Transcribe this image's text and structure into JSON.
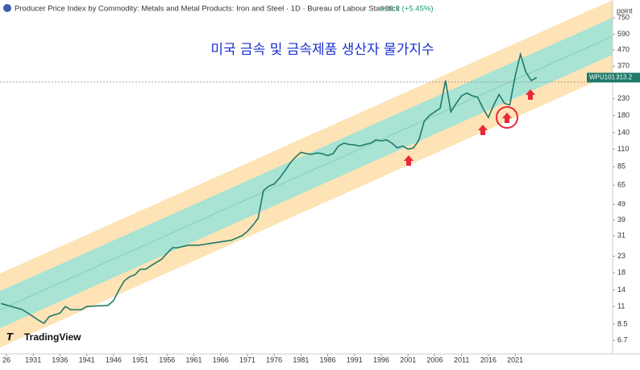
{
  "chart_data": {
    "type": "line",
    "title": "Producer Price Index by Commodity: Metals and Metal Products: Iron and Steel · 1D · Bureau of Labour Statistics",
    "change": "+16.2 (+5.45%)",
    "annotation": "미국 금속 및 금속제품 생산자 물가지수",
    "logo": "TradingView",
    "y_label": "point",
    "log_y": true,
    "x": [
      1925,
      1927,
      1929,
      1931,
      1932,
      1933,
      1934,
      1936,
      1937,
      1938,
      1940,
      1941,
      1945,
      1946,
      1947,
      1948,
      1949,
      1950,
      1951,
      1952,
      1953,
      1955,
      1956,
      1957,
      1958,
      1960,
      1962,
      1965,
      1968,
      1970,
      1971,
      1972,
      1973,
      1974,
      1975,
      1976,
      1977,
      1978,
      1979,
      1980,
      1981,
      1982,
      1983,
      1984,
      1985,
      1986,
      1987,
      1988,
      1989,
      1990,
      1991,
      1992,
      1993,
      1994,
      1995,
      1996,
      1997,
      1998,
      1999,
      2000,
      2001,
      2002,
      2003,
      2004,
      2005,
      2006,
      2007,
      2008,
      2009,
      2010,
      2011,
      2012,
      2013,
      2014,
      2015,
      2016,
      2017,
      2018,
      2019,
      2020,
      2021,
      2022,
      2023,
      2024,
      2025
    ],
    "series": [
      {
        "name": "WPU101",
        "color": "#1f7a6a",
        "values": [
          11.5,
          11,
          10.5,
          9.5,
          9,
          8.6,
          9.5,
          10,
          11,
          10.5,
          10.5,
          11,
          11.2,
          12,
          14,
          16,
          17,
          17.5,
          19,
          19,
          20,
          22,
          24,
          26,
          26,
          27,
          27,
          28,
          29,
          31,
          33,
          36,
          40,
          60,
          64,
          66,
          72,
          80,
          90,
          98,
          105,
          103,
          102,
          104,
          103,
          100,
          103,
          115,
          120,
          118,
          117,
          115,
          118,
          120,
          126,
          124,
          126,
          120,
          112,
          115,
          110,
          112,
          125,
          165,
          180,
          190,
          200,
          300,
          190,
          215,
          240,
          250,
          240,
          235,
          200,
          175,
          210,
          245,
          215,
          210,
          320,
          440,
          340,
          300,
          313.2
        ]
      }
    ],
    "xlim": [
      1924.8,
      2039.2
    ],
    "xticks": [
      {
        "value": 1926,
        "label": "26"
      },
      1931,
      1936,
      1941,
      1946,
      1951,
      1956,
      1961,
      1966,
      1971,
      1976,
      1981,
      1986,
      1991,
      1996,
      2001,
      2006,
      2011,
      2016,
      2021
    ],
    "ylim": [
      5.5,
      975
    ],
    "yticks": [
      6.7,
      8.5,
      11,
      14,
      18,
      23,
      31,
      39,
      49,
      65,
      85,
      110,
      140,
      180,
      230,
      370,
      470,
      590,
      750
    ]
  }
}
